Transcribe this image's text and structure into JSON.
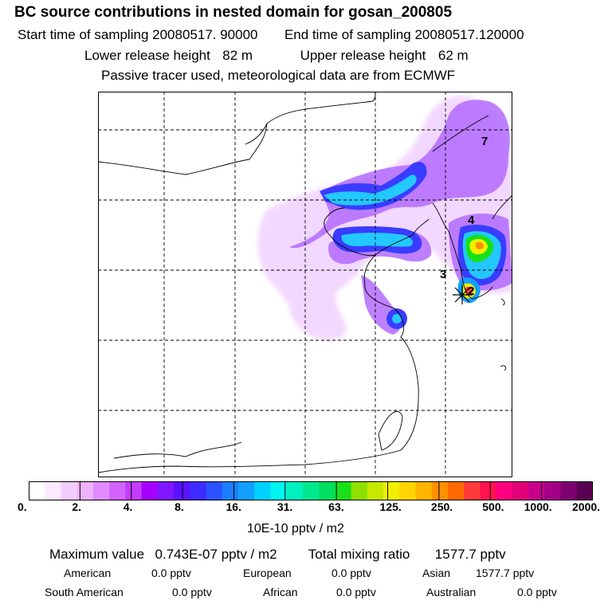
{
  "header": {
    "title": "BC  source contributions in nested domain for gosan_200805",
    "start_label": "Start time of sampling",
    "start_value": "20080517. 90000",
    "end_label": "End time of sampling",
    "end_value": "20080517.120000",
    "lower_label": "Lower release height",
    "lower_value": "82 m",
    "upper_label": "Upper release height",
    "upper_value": "62 m",
    "note": "Passive tracer used, meteorological data are from ECMWF"
  },
  "map": {
    "labels": [
      "7",
      "4",
      "3",
      "2"
    ],
    "station_marker": "star-cross-icon"
  },
  "colorbar": {
    "colors": [
      "#ffffff",
      "#fbe9ff",
      "#f3ccff",
      "#eeb2ff",
      "#e08cff",
      "#d263ff",
      "#c33cff",
      "#a600ff",
      "#7f18ff",
      "#5b12ff",
      "#3e2bff",
      "#2c52ff",
      "#1a7eff",
      "#12a0ff",
      "#00d2ff",
      "#00f5ef",
      "#00f0c0",
      "#00e88f",
      "#00e060",
      "#18e018",
      "#8ee000",
      "#c6e800",
      "#f0f000",
      "#ffd400",
      "#ffb400",
      "#ff9000",
      "#ff6a00",
      "#ff3a3a",
      "#ff1250",
      "#ff0080",
      "#e00078",
      "#c8008c",
      "#a40088",
      "#7e0070",
      "#5a0050"
    ],
    "ticks": [
      "0.",
      "2.",
      "4.",
      "8.",
      "16.",
      "31.",
      "63.",
      "125.",
      "250.",
      "500.",
      "1000.",
      "2000."
    ],
    "units": "10E-10 pptv / m2"
  },
  "summary": {
    "max_label": "Maximum value",
    "max_value": "0.743E-07 pptv / m2",
    "total_label": "Total mixing ratio",
    "total_value": "1577.7 pptv",
    "contributions": [
      {
        "region": "American",
        "value": "0.0 pptv"
      },
      {
        "region": "European",
        "value": "0.0 pptv"
      },
      {
        "region": "Asian",
        "value": "1577.7 pptv"
      },
      {
        "region": "South American",
        "value": "0.0 pptv"
      },
      {
        "region": "African",
        "value": "0.0 pptv"
      },
      {
        "region": "Australian",
        "value": "0.0 pptv"
      }
    ]
  }
}
